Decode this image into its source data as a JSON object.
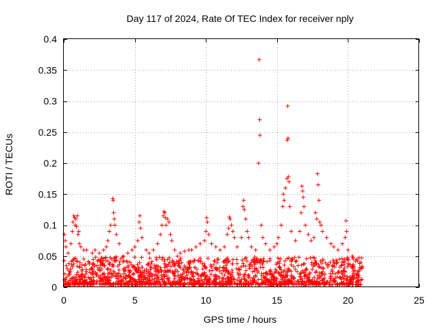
{
  "chart_data": {
    "type": "scatter",
    "title": "Day 117 of 2024, Rate Of TEC Index for receiver nply",
    "xlabel": "GPS time / hours",
    "ylabel": "ROTI / TECUs",
    "xlim": [
      0,
      25
    ],
    "ylim": [
      0,
      0.4
    ],
    "xticks": [
      0,
      5,
      10,
      15,
      20,
      25
    ],
    "xtick_labels": [
      "0",
      "5",
      "10",
      "15",
      "20",
      "25"
    ],
    "yticks": [
      0,
      0.05,
      0.1,
      0.15,
      0.2,
      0.25,
      0.3,
      0.35,
      0.4
    ],
    "ytick_labels": [
      "0",
      "0.05",
      "0.1",
      "0.15",
      "0.2",
      "0.25",
      "0.3",
      "0.35",
      "0.4"
    ],
    "grid": true,
    "marker": "+",
    "color": "#ff0000",
    "x_data_range": [
      0,
      21
    ],
    "baseline_density": "dense band of points between 0.005 and 0.05 TECU across 0–21 h",
    "series": [
      {
        "name": "ROTI",
        "points": [
          [
            0.05,
            0.085
          ],
          [
            0.1,
            0.075
          ],
          [
            0.15,
            0.065
          ],
          [
            0.3,
            0.055
          ],
          [
            0.5,
            0.07
          ],
          [
            0.6,
            0.09
          ],
          [
            0.65,
            0.105
          ],
          [
            0.7,
            0.115
          ],
          [
            0.75,
            0.112
          ],
          [
            0.8,
            0.1
          ],
          [
            0.85,
            0.11
          ],
          [
            0.9,
            0.098
          ],
          [
            0.95,
            0.115
          ],
          [
            1.0,
            0.085
          ],
          [
            1.05,
            0.09
          ],
          [
            1.1,
            0.07
          ],
          [
            1.2,
            0.065
          ],
          [
            1.4,
            0.06
          ],
          [
            1.6,
            0.06
          ],
          [
            2.0,
            0.055
          ],
          [
            2.2,
            0.06
          ],
          [
            2.5,
            0.055
          ],
          [
            2.8,
            0.06
          ],
          [
            3.0,
            0.065
          ],
          [
            3.1,
            0.075
          ],
          [
            3.2,
            0.09
          ],
          [
            3.3,
            0.1
          ],
          [
            3.45,
            0.143
          ],
          [
            3.48,
            0.14
          ],
          [
            3.5,
            0.12
          ],
          [
            3.55,
            0.11
          ],
          [
            3.6,
            0.1
          ],
          [
            3.7,
            0.085
          ],
          [
            3.9,
            0.07
          ],
          [
            4.2,
            0.05
          ],
          [
            4.5,
            0.055
          ],
          [
            4.8,
            0.06
          ],
          [
            5.0,
            0.065
          ],
          [
            5.2,
            0.075
          ],
          [
            5.3,
            0.105
          ],
          [
            5.35,
            0.115
          ],
          [
            5.4,
            0.095
          ],
          [
            5.5,
            0.08
          ],
          [
            5.8,
            0.06
          ],
          [
            6.0,
            0.055
          ],
          [
            6.3,
            0.06
          ],
          [
            6.6,
            0.07
          ],
          [
            6.8,
            0.085
          ],
          [
            6.9,
            0.1
          ],
          [
            7.0,
            0.115
          ],
          [
            7.05,
            0.122
          ],
          [
            7.1,
            0.12
          ],
          [
            7.15,
            0.112
          ],
          [
            7.2,
            0.1
          ],
          [
            7.3,
            0.11
          ],
          [
            7.4,
            0.105
          ],
          [
            7.5,
            0.085
          ],
          [
            7.6,
            0.075
          ],
          [
            7.8,
            0.06
          ],
          [
            8.0,
            0.05
          ],
          [
            8.2,
            0.055
          ],
          [
            8.5,
            0.058
          ],
          [
            8.8,
            0.06
          ],
          [
            9.0,
            0.06
          ],
          [
            9.3,
            0.065
          ],
          [
            9.6,
            0.07
          ],
          [
            9.9,
            0.075
          ],
          [
            10.0,
            0.09
          ],
          [
            10.05,
            0.112
          ],
          [
            10.1,
            0.105
          ],
          [
            10.2,
            0.085
          ],
          [
            10.4,
            0.07
          ],
          [
            10.7,
            0.065
          ],
          [
            11.0,
            0.06
          ],
          [
            11.3,
            0.065
          ],
          [
            11.5,
            0.085
          ],
          [
            11.6,
            0.095
          ],
          [
            11.65,
            0.113
          ],
          [
            11.7,
            0.11
          ],
          [
            11.8,
            0.1
          ],
          [
            11.9,
            0.09
          ],
          [
            12.0,
            0.08
          ],
          [
            12.2,
            0.065
          ],
          [
            12.5,
            0.08
          ],
          [
            12.6,
            0.13
          ],
          [
            12.65,
            0.14
          ],
          [
            12.7,
            0.125
          ],
          [
            12.8,
            0.11
          ],
          [
            12.9,
            0.09
          ],
          [
            13.0,
            0.08
          ],
          [
            13.2,
            0.065
          ],
          [
            13.5,
            0.06
          ],
          [
            13.7,
            0.2
          ],
          [
            13.75,
            0.367
          ],
          [
            13.78,
            0.27
          ],
          [
            13.8,
            0.245
          ],
          [
            13.9,
            0.1
          ],
          [
            14.0,
            0.08
          ],
          [
            14.2,
            0.07
          ],
          [
            14.5,
            0.06
          ],
          [
            14.8,
            0.065
          ],
          [
            15.0,
            0.07
          ],
          [
            15.1,
            0.08
          ],
          [
            15.3,
            0.1
          ],
          [
            15.4,
            0.13
          ],
          [
            15.45,
            0.15
          ],
          [
            15.5,
            0.14
          ],
          [
            15.6,
            0.16
          ],
          [
            15.7,
            0.175
          ],
          [
            15.72,
            0.237
          ],
          [
            15.75,
            0.292
          ],
          [
            15.78,
            0.24
          ],
          [
            15.8,
            0.178
          ],
          [
            15.85,
            0.17
          ],
          [
            15.9,
            0.13
          ],
          [
            16.0,
            0.09
          ],
          [
            16.3,
            0.075
          ],
          [
            16.6,
            0.09
          ],
          [
            16.7,
            0.12
          ],
          [
            16.75,
            0.163
          ],
          [
            16.8,
            0.155
          ],
          [
            16.85,
            0.145
          ],
          [
            16.9,
            0.13
          ],
          [
            17.0,
            0.1
          ],
          [
            17.2,
            0.085
          ],
          [
            17.4,
            0.075
          ],
          [
            17.6,
            0.08
          ],
          [
            17.7,
            0.12
          ],
          [
            17.8,
            0.11
          ],
          [
            17.85,
            0.183
          ],
          [
            17.9,
            0.165
          ],
          [
            17.95,
            0.14
          ],
          [
            18.0,
            0.105
          ],
          [
            18.1,
            0.1
          ],
          [
            18.2,
            0.09
          ],
          [
            18.5,
            0.08
          ],
          [
            18.8,
            0.07
          ],
          [
            19.0,
            0.065
          ],
          [
            19.3,
            0.06
          ],
          [
            19.6,
            0.07
          ],
          [
            19.8,
            0.08
          ],
          [
            19.85,
            0.107
          ],
          [
            19.9,
            0.09
          ],
          [
            20.0,
            0.06
          ],
          [
            20.3,
            0.05
          ],
          [
            20.6,
            0.045
          ],
          [
            20.9,
            0.04
          ]
        ]
      }
    ]
  }
}
